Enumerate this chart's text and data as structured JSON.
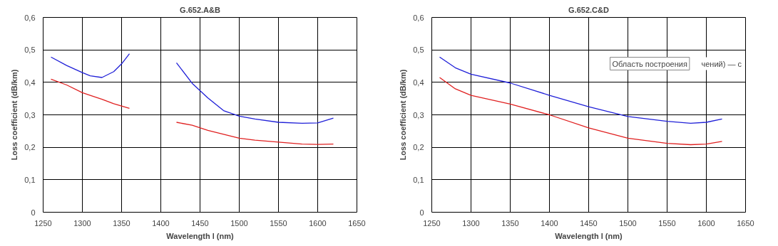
{
  "chart_data": [
    {
      "type": "line",
      "title": "G.652.A&B",
      "xlabel": "Wavelength l (nm)",
      "ylabel": "Loss coefficient (dB/km)",
      "x": [
        1260,
        1280,
        1300,
        1310,
        1325,
        1340,
        1350,
        1360,
        1390,
        1420,
        1440,
        1460,
        1480,
        1500,
        1520,
        1550,
        1580,
        1600,
        1620
      ],
      "series": [
        {
          "color": "#2020d8",
          "values": [
            0.478,
            0.452,
            0.43,
            0.42,
            0.415,
            0.433,
            0.457,
            0.488,
            null,
            0.46,
            0.397,
            0.352,
            0.313,
            0.296,
            0.287,
            0.277,
            0.274,
            0.275,
            0.29
          ]
        },
        {
          "color": "#e02020",
          "values": [
            0.41,
            0.392,
            0.368,
            0.36,
            0.348,
            0.334,
            0.327,
            0.32,
            null,
            0.277,
            0.268,
            0.252,
            0.24,
            0.228,
            0.222,
            0.216,
            0.21,
            0.209,
            0.21
          ]
        }
      ],
      "xlim": [
        1250,
        1650
      ],
      "xticks": [
        1250,
        1300,
        1350,
        1400,
        1450,
        1500,
        1550,
        1600,
        1650
      ],
      "ylim": [
        0,
        0.6
      ],
      "yticks": [
        {
          "value": 0,
          "label": "0"
        },
        {
          "value": 0.1,
          "label": "0,1"
        },
        {
          "value": 0.2,
          "label": "0,2"
        },
        {
          "value": 0.3,
          "label": "0,3"
        },
        {
          "value": 0.4,
          "label": "0,4"
        },
        {
          "value": 0.5,
          "label": "0,5"
        },
        {
          "value": 0.6,
          "label": "0,6"
        }
      ],
      "grid": true,
      "marker": "none",
      "line_style": "solid"
    },
    {
      "type": "line",
      "title": "G.652.C&D",
      "xlabel": "Wavelength l (nm)",
      "ylabel": "Loss coefficient (dB/km)",
      "x": [
        1260,
        1280,
        1300,
        1350,
        1400,
        1450,
        1500,
        1550,
        1580,
        1600,
        1620
      ],
      "series": [
        {
          "color": "#2020d8",
          "values": [
            0.478,
            0.445,
            0.425,
            0.398,
            0.36,
            0.325,
            0.295,
            0.28,
            0.274,
            0.277,
            0.287
          ]
        },
        {
          "color": "#e02020",
          "values": [
            0.415,
            0.38,
            0.36,
            0.333,
            0.3,
            0.26,
            0.228,
            0.212,
            0.208,
            0.21,
            0.218
          ]
        }
      ],
      "xlim": [
        1250,
        1650
      ],
      "xticks": [
        1250,
        1300,
        1350,
        1400,
        1450,
        1500,
        1550,
        1600,
        1650
      ],
      "ylim": [
        0,
        0.6
      ],
      "yticks": [
        {
          "value": 0,
          "label": "0"
        },
        {
          "value": 0.1,
          "label": "0,1"
        },
        {
          "value": 0.2,
          "label": "0,2"
        },
        {
          "value": 0.3,
          "label": "0,3"
        },
        {
          "value": 0.4,
          "label": "0,4"
        },
        {
          "value": 0.5,
          "label": "0,5"
        },
        {
          "value": 0.6,
          "label": "0,6"
        }
      ],
      "grid": true,
      "marker": "none",
      "line_style": "solid",
      "annotations": [
        "Область построения",
        "чений) — с"
      ]
    }
  ]
}
